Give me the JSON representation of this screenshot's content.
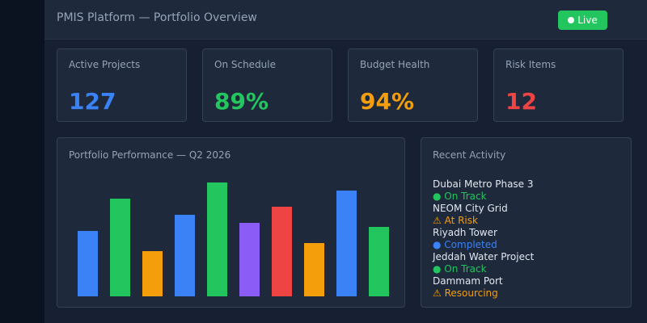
{
  "header": {
    "title": "PMIS Platform — Portfolio Overview",
    "live_label": "Live",
    "live_color": "#22c55e"
  },
  "stats": [
    {
      "label": "Active Projects",
      "value": "127",
      "color": "#3b82f6"
    },
    {
      "label": "On Schedule",
      "value": "89%",
      "color": "#22c55e"
    },
    {
      "label": "Budget Health",
      "value": "94%",
      "color": "#f59e0b"
    },
    {
      "label": "Risk Items",
      "value": "12",
      "color": "#ef4444"
    }
  ],
  "chart_panel": {
    "title": "Portfolio Performance — Q2 2026"
  },
  "chart_data": {
    "type": "bar",
    "title": "Portfolio Performance — Q2 2026",
    "values": [
      81,
      121,
      56,
      101,
      141,
      91,
      111,
      66,
      131,
      86
    ],
    "colors": [
      "#3b82f6",
      "#22c55e",
      "#f59e0b",
      "#3b82f6",
      "#22c55e",
      "#8b5cf6",
      "#ef4444",
      "#f59e0b",
      "#3b82f6",
      "#22c55e"
    ],
    "grid": false,
    "legend": "none"
  },
  "activity": {
    "title": "Recent Activity",
    "items": [
      {
        "name": "Dubai Metro Phase 3",
        "status": "● On Track",
        "color": "#22c55e"
      },
      {
        "name": "NEOM City Grid",
        "status": "⚠ At Risk",
        "color": "#f59e0b"
      },
      {
        "name": "Riyadh Tower",
        "status": "● Completed",
        "color": "#3b82f6"
      },
      {
        "name": "Jeddah Water Project",
        "status": "● On Track",
        "color": "#22c55e"
      },
      {
        "name": "Dammam Port",
        "status": "⚠ Resourcing",
        "color": "#f59e0b"
      }
    ]
  }
}
